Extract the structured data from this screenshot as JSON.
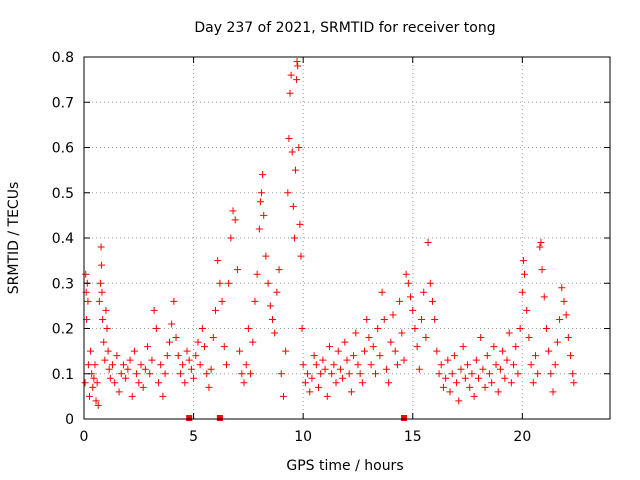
{
  "chart_data": {
    "type": "scatter",
    "title": "Day 237 of 2021, SRMTID for receiver tong",
    "xlabel": "GPS time / hours",
    "ylabel": "SRMTID / TECUs",
    "xlim": [
      0,
      24
    ],
    "ylim": [
      0,
      0.8
    ],
    "xticks": [
      0,
      5,
      10,
      15,
      20
    ],
    "yticks": [
      0,
      0.1,
      0.2,
      0.3,
      0.4,
      0.5,
      0.6,
      0.7,
      0.8
    ],
    "xtick_labels": [
      "0",
      "5",
      "10",
      "15",
      "20"
    ],
    "ytick_labels": [
      "0",
      "0.1",
      "0.2",
      "0.3",
      "0.4",
      "0.5",
      "0.6",
      "0.7",
      "0.8"
    ],
    "grid": true,
    "marker": "+",
    "color": "#ff0000",
    "x_markers": [
      4.8,
      6.2,
      14.6
    ],
    "series": [
      {
        "name": "SRMTID",
        "points": [
          [
            0.05,
            0.08
          ],
          [
            0.08,
            0.32
          ],
          [
            0.1,
            0.28
          ],
          [
            0.12,
            0.22
          ],
          [
            0.15,
            0.3
          ],
          [
            0.18,
            0.26
          ],
          [
            0.2,
            0.12
          ],
          [
            0.25,
            0.05
          ],
          [
            0.3,
            0.15
          ],
          [
            0.35,
            0.1
          ],
          [
            0.4,
            0.07
          ],
          [
            0.45,
            0.09
          ],
          [
            0.5,
            0.12
          ],
          [
            0.55,
            0.04
          ],
          [
            0.6,
            0.08
          ],
          [
            0.65,
            0.03
          ],
          [
            0.7,
            0.26
          ],
          [
            0.75,
            0.3
          ],
          [
            0.78,
            0.38
          ],
          [
            0.8,
            0.34
          ],
          [
            0.82,
            0.28
          ],
          [
            0.85,
            0.22
          ],
          [
            0.9,
            0.17
          ],
          [
            0.95,
            0.13
          ],
          [
            1.0,
            0.24
          ],
          [
            1.05,
            0.2
          ],
          [
            1.1,
            0.15
          ],
          [
            1.15,
            0.11
          ],
          [
            1.2,
            0.09
          ],
          [
            1.3,
            0.12
          ],
          [
            1.4,
            0.08
          ],
          [
            1.5,
            0.14
          ],
          [
            1.6,
            0.06
          ],
          [
            1.7,
            0.1
          ],
          [
            1.8,
            0.12
          ],
          [
            1.9,
            0.09
          ],
          [
            2.0,
            0.11
          ],
          [
            2.1,
            0.13
          ],
          [
            2.2,
            0.05
          ],
          [
            2.3,
            0.15
          ],
          [
            2.4,
            0.1
          ],
          [
            2.5,
            0.08
          ],
          [
            2.6,
            0.12
          ],
          [
            2.7,
            0.07
          ],
          [
            2.8,
            0.11
          ],
          [
            2.9,
            0.16
          ],
          [
            3.0,
            0.1
          ],
          [
            3.1,
            0.13
          ],
          [
            3.2,
            0.24
          ],
          [
            3.3,
            0.2
          ],
          [
            3.4,
            0.08
          ],
          [
            3.5,
            0.12
          ],
          [
            3.6,
            0.05
          ],
          [
            3.7,
            0.1
          ],
          [
            3.8,
            0.14
          ],
          [
            3.9,
            0.17
          ],
          [
            4.0,
            0.21
          ],
          [
            4.1,
            0.26
          ],
          [
            4.2,
            0.18
          ],
          [
            4.3,
            0.14
          ],
          [
            4.4,
            0.1
          ],
          [
            4.5,
            0.12
          ],
          [
            4.6,
            0.08
          ],
          [
            4.7,
            0.15
          ],
          [
            4.8,
            0.13
          ],
          [
            4.9,
            0.11
          ],
          [
            5.0,
            0.09
          ],
          [
            5.1,
            0.14
          ],
          [
            5.2,
            0.17
          ],
          [
            5.3,
            0.12
          ],
          [
            5.4,
            0.2
          ],
          [
            5.5,
            0.16
          ],
          [
            5.6,
            0.1
          ],
          [
            5.7,
            0.07
          ],
          [
            5.8,
            0.11
          ],
          [
            5.9,
            0.18
          ],
          [
            6.0,
            0.24
          ],
          [
            6.1,
            0.35
          ],
          [
            6.2,
            0.3
          ],
          [
            6.3,
            0.26
          ],
          [
            6.4,
            0.16
          ],
          [
            6.5,
            0.12
          ],
          [
            6.6,
            0.3
          ],
          [
            6.7,
            0.4
          ],
          [
            6.8,
            0.46
          ],
          [
            6.9,
            0.44
          ],
          [
            7.0,
            0.33
          ],
          [
            7.1,
            0.15
          ],
          [
            7.2,
            0.1
          ],
          [
            7.3,
            0.08
          ],
          [
            7.4,
            0.12
          ],
          [
            7.5,
            0.2
          ],
          [
            7.6,
            0.1
          ],
          [
            7.7,
            0.17
          ],
          [
            7.8,
            0.26
          ],
          [
            7.9,
            0.32
          ],
          [
            8.0,
            0.42
          ],
          [
            8.05,
            0.48
          ],
          [
            8.1,
            0.5
          ],
          [
            8.15,
            0.54
          ],
          [
            8.2,
            0.45
          ],
          [
            8.3,
            0.36
          ],
          [
            8.4,
            0.3
          ],
          [
            8.5,
            0.25
          ],
          [
            8.6,
            0.22
          ],
          [
            8.7,
            0.19
          ],
          [
            8.8,
            0.28
          ],
          [
            8.9,
            0.33
          ],
          [
            9.0,
            0.1
          ],
          [
            9.1,
            0.05
          ],
          [
            9.2,
            0.15
          ],
          [
            9.3,
            0.5
          ],
          [
            9.35,
            0.62
          ],
          [
            9.4,
            0.72
          ],
          [
            9.45,
            0.76
          ],
          [
            9.5,
            0.59
          ],
          [
            9.55,
            0.47
          ],
          [
            9.6,
            0.4
          ],
          [
            9.65,
            0.55
          ],
          [
            9.7,
            0.75
          ],
          [
            9.72,
            0.79
          ],
          [
            9.75,
            0.78
          ],
          [
            9.8,
            0.6
          ],
          [
            9.85,
            0.43
          ],
          [
            9.9,
            0.36
          ],
          [
            9.95,
            0.2
          ],
          [
            10.0,
            0.12
          ],
          [
            10.1,
            0.08
          ],
          [
            10.2,
            0.1
          ],
          [
            10.3,
            0.06
          ],
          [
            10.4,
            0.09
          ],
          [
            10.5,
            0.14
          ],
          [
            10.6,
            0.12
          ],
          [
            10.7,
            0.07
          ],
          [
            10.8,
            0.1
          ],
          [
            10.9,
            0.13
          ],
          [
            11.0,
            0.11
          ],
          [
            11.1,
            0.05
          ],
          [
            11.2,
            0.16
          ],
          [
            11.3,
            0.1
          ],
          [
            11.4,
            0.12
          ],
          [
            11.5,
            0.08
          ],
          [
            11.6,
            0.15
          ],
          [
            11.7,
            0.11
          ],
          [
            11.8,
            0.09
          ],
          [
            11.9,
            0.17
          ],
          [
            12.0,
            0.13
          ],
          [
            12.1,
            0.1
          ],
          [
            12.2,
            0.06
          ],
          [
            12.3,
            0.14
          ],
          [
            12.4,
            0.19
          ],
          [
            12.5,
            0.12
          ],
          [
            12.6,
            0.1
          ],
          [
            12.7,
            0.08
          ],
          [
            12.8,
            0.15
          ],
          [
            12.9,
            0.22
          ],
          [
            13.0,
            0.18
          ],
          [
            13.1,
            0.12
          ],
          [
            13.2,
            0.16
          ],
          [
            13.3,
            0.1
          ],
          [
            13.4,
            0.2
          ],
          [
            13.5,
            0.14
          ],
          [
            13.6,
            0.28
          ],
          [
            13.7,
            0.22
          ],
          [
            13.8,
            0.11
          ],
          [
            13.9,
            0.08
          ],
          [
            14.0,
            0.17
          ],
          [
            14.1,
            0.23
          ],
          [
            14.2,
            0.15
          ],
          [
            14.3,
            0.12
          ],
          [
            14.4,
            0.26
          ],
          [
            14.5,
            0.19
          ],
          [
            14.6,
            0.13
          ],
          [
            14.7,
            0.32
          ],
          [
            14.8,
            0.3
          ],
          [
            14.9,
            0.27
          ],
          [
            15.0,
            0.24
          ],
          [
            15.1,
            0.2
          ],
          [
            15.2,
            0.16
          ],
          [
            15.3,
            0.11
          ],
          [
            15.4,
            0.22
          ],
          [
            15.5,
            0.28
          ],
          [
            15.6,
            0.18
          ],
          [
            15.7,
            0.39
          ],
          [
            15.8,
            0.3
          ],
          [
            15.9,
            0.26
          ],
          [
            16.0,
            0.22
          ],
          [
            16.1,
            0.15
          ],
          [
            16.2,
            0.1
          ],
          [
            16.3,
            0.12
          ],
          [
            16.4,
            0.07
          ],
          [
            16.5,
            0.09
          ],
          [
            16.6,
            0.13
          ],
          [
            16.7,
            0.06
          ],
          [
            16.8,
            0.1
          ],
          [
            16.9,
            0.14
          ],
          [
            17.0,
            0.08
          ],
          [
            17.1,
            0.04
          ],
          [
            17.2,
            0.11
          ],
          [
            17.3,
            0.16
          ],
          [
            17.4,
            0.09
          ],
          [
            17.5,
            0.12
          ],
          [
            17.6,
            0.07
          ],
          [
            17.7,
            0.1
          ],
          [
            17.8,
            0.05
          ],
          [
            17.9,
            0.13
          ],
          [
            18.0,
            0.09
          ],
          [
            18.1,
            0.18
          ],
          [
            18.2,
            0.11
          ],
          [
            18.3,
            0.07
          ],
          [
            18.4,
            0.14
          ],
          [
            18.5,
            0.1
          ],
          [
            18.6,
            0.08
          ],
          [
            18.7,
            0.16
          ],
          [
            18.8,
            0.12
          ],
          [
            18.9,
            0.06
          ],
          [
            19.0,
            0.11
          ],
          [
            19.1,
            0.15
          ],
          [
            19.2,
            0.09
          ],
          [
            19.3,
            0.13
          ],
          [
            19.4,
            0.19
          ],
          [
            19.5,
            0.08
          ],
          [
            19.6,
            0.12
          ],
          [
            19.7,
            0.16
          ],
          [
            19.8,
            0.1
          ],
          [
            19.9,
            0.2
          ],
          [
            20.0,
            0.28
          ],
          [
            20.05,
            0.35
          ],
          [
            20.1,
            0.32
          ],
          [
            20.2,
            0.24
          ],
          [
            20.3,
            0.18
          ],
          [
            20.4,
            0.12
          ],
          [
            20.5,
            0.08
          ],
          [
            20.6,
            0.14
          ],
          [
            20.7,
            0.1
          ],
          [
            20.8,
            0.38
          ],
          [
            20.85,
            0.39
          ],
          [
            20.9,
            0.33
          ],
          [
            21.0,
            0.27
          ],
          [
            21.1,
            0.2
          ],
          [
            21.2,
            0.15
          ],
          [
            21.3,
            0.1
          ],
          [
            21.4,
            0.06
          ],
          [
            21.5,
            0.12
          ],
          [
            21.6,
            0.17
          ],
          [
            21.7,
            0.22
          ],
          [
            21.8,
            0.29
          ],
          [
            21.9,
            0.26
          ],
          [
            22.0,
            0.23
          ],
          [
            22.1,
            0.18
          ],
          [
            22.2,
            0.14
          ],
          [
            22.3,
            0.1
          ],
          [
            22.35,
            0.08
          ]
        ]
      }
    ]
  }
}
